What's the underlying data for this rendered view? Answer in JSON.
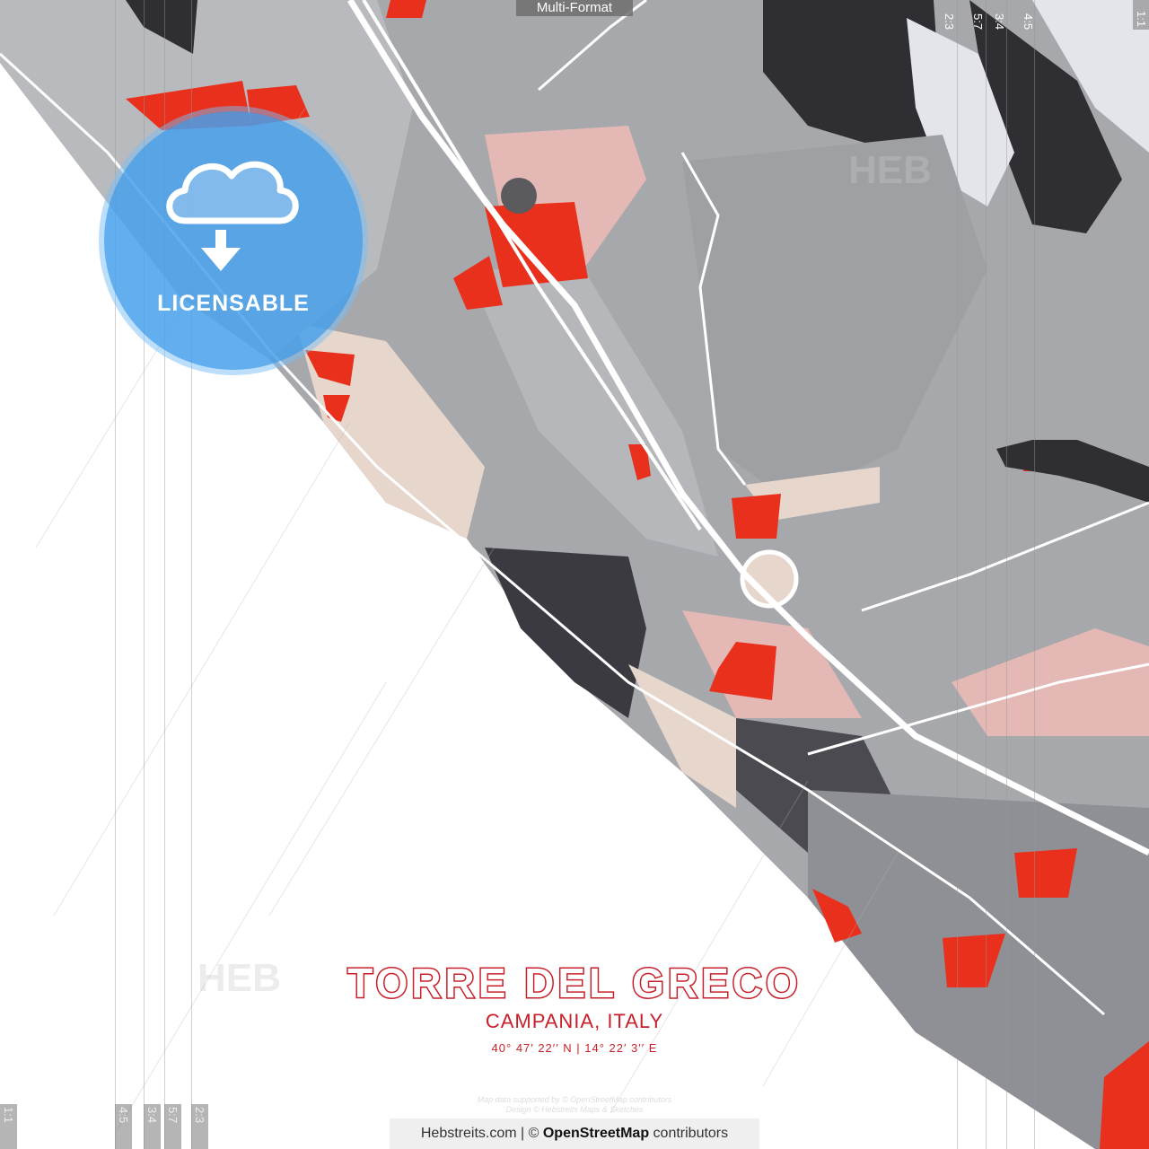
{
  "map": {
    "city": "TORRE DEL GRECO",
    "region": "CAMPANIA, ITALY",
    "coordinates": "40°  47′  22′′ N  |  14°  22′  3′′ E",
    "credits_line1": "Map data supported by © OpenStreetMap contributors",
    "credits_line2": "Design © Hebstreits Maps & Sketches",
    "colors": {
      "accent_red": "#e8301c",
      "title_red": "#c8202a",
      "dark": "#2e2e33",
      "gray": "#9a9a9e",
      "light_gray": "#c8c9cc",
      "pink": "#e3b8b5",
      "sand": "#e6d6cc"
    }
  },
  "overlay": {
    "format_tag": "Multi-Format",
    "badge_label": "LICENSABLE",
    "badge_icon": "cloud-download-icon",
    "top_ratios": [
      "2:3",
      "5:7",
      "3:4",
      "4:5",
      "1:1"
    ],
    "bottom_ratios": [
      "1:1",
      "4:5",
      "3:4",
      "5:7",
      "2:3"
    ],
    "watermark": "HEB"
  },
  "footer": {
    "site": "Hebstreits.com | © ",
    "osm": "OpenStreetMap",
    "suffix": " contributors"
  }
}
